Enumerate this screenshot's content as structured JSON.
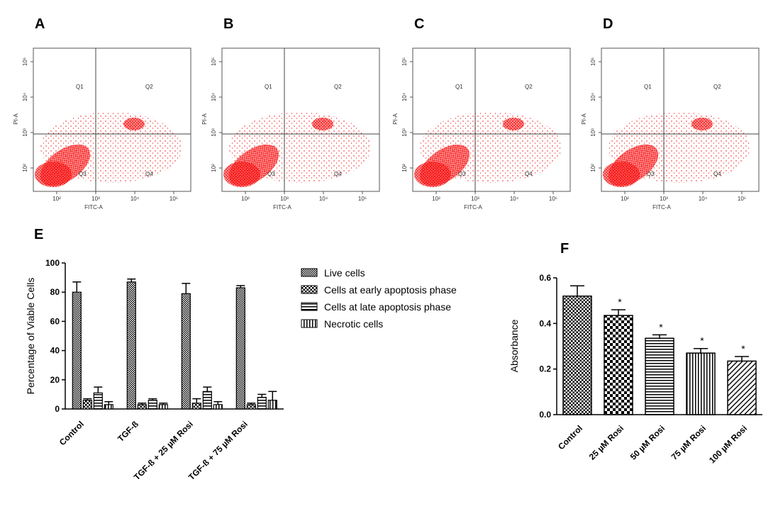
{
  "flow_panels": [
    {
      "label": "A",
      "quadrants": [
        "Q1",
        "Q2",
        "Q3",
        "Q4"
      ],
      "x_label": "FITC-A",
      "y_label": "PI-A",
      "xticks": [
        "10²",
        "10³",
        "10⁴",
        "10⁵"
      ],
      "yticks": [
        "10²",
        "10³",
        "10⁴",
        "10⁵"
      ]
    },
    {
      "label": "B",
      "quadrants": [
        "Q1",
        "Q2",
        "Q3",
        "Q4"
      ],
      "x_label": "FITC-A",
      "y_label": "PI-A",
      "xticks": [
        "10²",
        "10³",
        "10⁴",
        "10⁵"
      ],
      "yticks": [
        "10²",
        "10³",
        "10⁴",
        "10⁵"
      ]
    },
    {
      "label": "C",
      "quadrants": [
        "Q1",
        "Q2",
        "Q3",
        "Q4"
      ],
      "x_label": "FITC-A",
      "y_label": "PI-A",
      "xticks": [
        "10²",
        "10³",
        "10⁴",
        "10⁵"
      ],
      "yticks": [
        "10²",
        "10³",
        "10⁴",
        "10⁵"
      ]
    },
    {
      "label": "D",
      "quadrants": [
        "Q1",
        "Q2",
        "Q3",
        "Q4"
      ],
      "x_label": "FITC-A",
      "y_label": "PI-A",
      "xticks": [
        "10²",
        "10³",
        "10⁴",
        "10⁵"
      ],
      "yticks": [
        "10²",
        "10³",
        "10⁴",
        "10⁵"
      ]
    }
  ],
  "chart_data": [
    {
      "type": "grouped_bar",
      "title": "E",
      "y_label": "Percentage of Viable Cells",
      "categories": [
        "Control",
        "TGF-ß",
        "TGF-ß + 25 µM Rosi",
        "TGF-ß + 75 µM Rosi"
      ],
      "series": [
        {
          "name": "Live cells",
          "color": "#000000",
          "pattern": "fine-check",
          "values": [
            80,
            87,
            79,
            83
          ],
          "error": [
            7,
            2,
            7,
            1.5
          ]
        },
        {
          "name": "Cells at early apoptosis phase",
          "color": "#000000",
          "pattern": "coarse-check",
          "values": [
            6,
            3,
            4,
            3
          ],
          "error": [
            1,
            1,
            3,
            1
          ]
        },
        {
          "name": "Cells at late apoptosis phase",
          "color": "#000000",
          "pattern": "horizontal",
          "values": [
            11,
            6,
            12,
            8
          ],
          "error": [
            4,
            1,
            3,
            2
          ]
        },
        {
          "name": "Necrotic cells",
          "color": "#000000",
          "pattern": "vertical",
          "values": [
            3,
            3,
            3,
            6
          ],
          "error": [
            2,
            1,
            2,
            6
          ]
        }
      ],
      "ylim": [
        0,
        100
      ],
      "yticks": [
        0,
        20,
        40,
        60,
        80,
        100
      ]
    },
    {
      "type": "bar",
      "title": "F",
      "y_label": "Absorbance",
      "categories": [
        "Control",
        "25 µM Rosi",
        "50 µM Rosi",
        "75 µM Rosi",
        "100 µM Rosi"
      ],
      "values": [
        0.52,
        0.435,
        0.335,
        0.27,
        0.235
      ],
      "error": [
        0.045,
        0.025,
        0.015,
        0.02,
        0.02
      ],
      "patterns": [
        "coarse-check",
        "big-check",
        "horizontal",
        "vertical",
        "diagonal"
      ],
      "significance": [
        null,
        "*",
        "*",
        "*",
        "*"
      ],
      "ylim": [
        0,
        0.6
      ],
      "yticks": [
        {
          "value": 0,
          "label": "0.0"
        },
        0.2,
        0.4,
        0.6
      ]
    }
  ]
}
